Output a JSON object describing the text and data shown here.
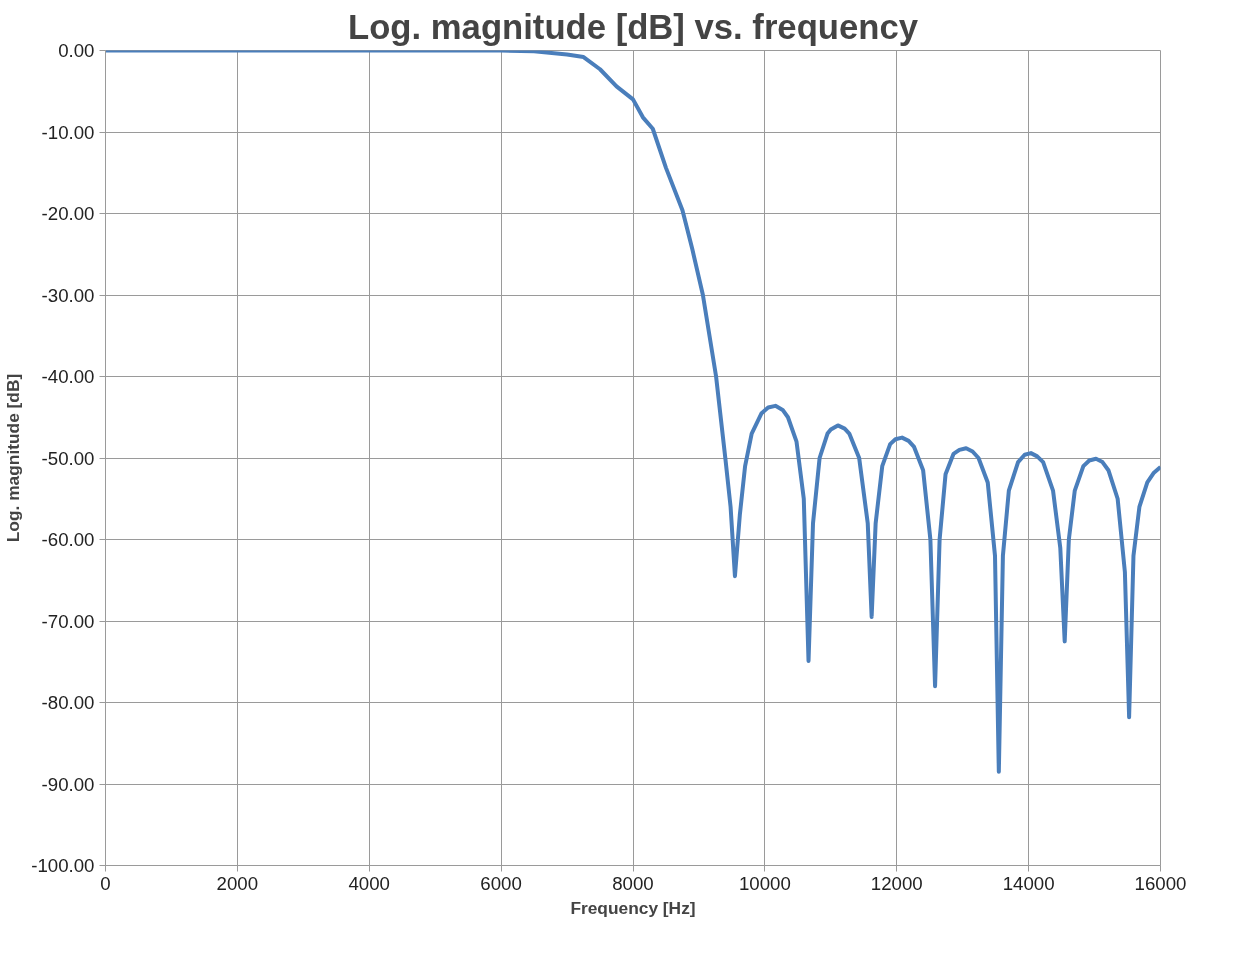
{
  "chart_data": {
    "type": "line",
    "title": "Log. magnitude [dB] vs. frequency",
    "xlabel": "Frequency [Hz]",
    "ylabel": "Log. magnitude [dB]",
    "x": [
      0,
      2000,
      4000,
      6000,
      6500,
      7000,
      7250,
      7500,
      7750,
      8000,
      8150,
      8300,
      8500,
      8750,
      8900,
      9060,
      9260,
      9400,
      9480,
      9546,
      9620,
      9700,
      9800,
      9950,
      10050,
      10160,
      10270,
      10350,
      10480,
      10590,
      10662,
      10730,
      10830,
      10950,
      11000,
      11107,
      11210,
      11280,
      11430,
      11560,
      11619,
      11680,
      11780,
      11900,
      11980,
      12080,
      12180,
      12260,
      12400,
      12510,
      12581,
      12650,
      12740,
      12860,
      12950,
      13052,
      13150,
      13240,
      13380,
      13490,
      13548,
      13610,
      13700,
      13840,
      13940,
      14035,
      14130,
      14220,
      14370,
      14480,
      14547,
      14610,
      14700,
      14830,
      14920,
      15022,
      15120,
      15210,
      15350,
      15460,
      15524,
      15590,
      15680,
      15800,
      15900,
      16000
    ],
    "series": [
      {
        "color": "#4a7ebb",
        "values": [
          0,
          0,
          0,
          0,
          -0.1,
          -0.5,
          -0.8,
          -2.3,
          -4.4,
          -6,
          -8.2,
          -9.6,
          -14.4,
          -19.6,
          -24.4,
          -30,
          -40,
          -50,
          -56,
          -64.5,
          -57,
          -51,
          -47,
          -44.5,
          -43.8,
          -43.6,
          -44.1,
          -45,
          -48,
          -55,
          -74.9,
          -58,
          -50,
          -47,
          -46.5,
          -46,
          -46.4,
          -47,
          -50,
          -58,
          -69.5,
          -58,
          -51,
          -48.3,
          -47.7,
          -47.5,
          -47.9,
          -48.6,
          -51.5,
          -60,
          -78,
          -60,
          -52,
          -49.5,
          -49,
          -48.8,
          -49.2,
          -50,
          -53,
          -62,
          -88.5,
          -62,
          -54,
          -50.5,
          -49.6,
          -49.4,
          -49.8,
          -50.5,
          -54,
          -61,
          -72.5,
          -60,
          -54,
          -51,
          -50.3,
          -50.1,
          -50.5,
          -51.5,
          -55,
          -64,
          -81.8,
          -62,
          -56,
          -53,
          -51.8,
          -51.1
        ]
      }
    ],
    "xlim": [
      0,
      16000
    ],
    "xticks": [
      0,
      2000,
      4000,
      6000,
      8000,
      10000,
      12000,
      14000,
      16000
    ],
    "ylim": [
      -100,
      0
    ],
    "yticks": [
      {
        "value": 0,
        "label": "0.00"
      },
      {
        "value": -10,
        "label": "-10.00"
      },
      {
        "value": -20,
        "label": "-20.00"
      },
      {
        "value": -30,
        "label": "-30.00"
      },
      {
        "value": -40,
        "label": "-40.00"
      },
      {
        "value": -50,
        "label": "-50.00"
      },
      {
        "value": -60,
        "label": "-60.00"
      },
      {
        "value": -70,
        "label": "-70.00"
      },
      {
        "value": -80,
        "label": "-80.00"
      },
      {
        "value": -90,
        "label": "-90.00"
      },
      {
        "value": -100,
        "label": "-100.00"
      }
    ],
    "grid": true,
    "line_style": "solid"
  }
}
